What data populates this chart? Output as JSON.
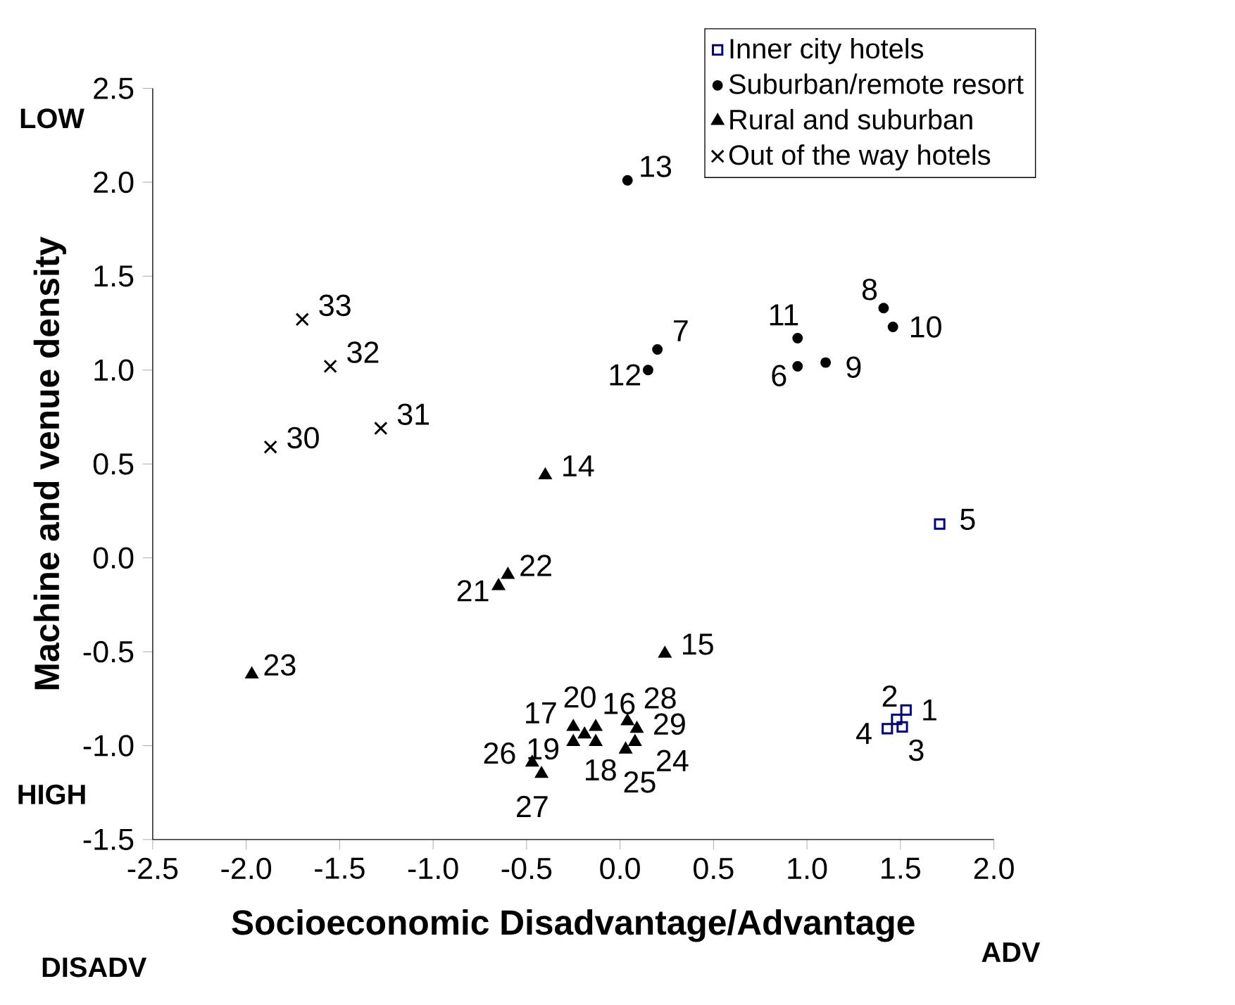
{
  "chart_data": {
    "type": "scatter",
    "xlabel": "Socioeconomic Disadvantage/Advantage",
    "ylabel": "Machine and venue density",
    "xlim": [
      -2.5,
      2.0
    ],
    "ylim": [
      -1.5,
      2.5
    ],
    "xticks": [
      {
        "value": -2.5,
        "label": "-2.5"
      },
      {
        "value": -2.0,
        "label": "-2.0"
      },
      {
        "value": -1.5,
        "label": "-1.5"
      },
      {
        "value": -1.0,
        "label": "-1.0"
      },
      {
        "value": -0.5,
        "label": "-0.5"
      },
      {
        "value": 0.0,
        "label": "0.0"
      },
      {
        "value": 0.5,
        "label": "0.5"
      },
      {
        "value": 1.0,
        "label": "1.0"
      },
      {
        "value": 1.5,
        "label": "1.5"
      },
      {
        "value": 2.0,
        "label": "2.0"
      }
    ],
    "yticks": [
      {
        "value": -1.5,
        "label": "-1.5"
      },
      {
        "value": -1.0,
        "label": "-1.0"
      },
      {
        "value": -0.5,
        "label": "-0.5"
      },
      {
        "value": 0.0,
        "label": "0.0"
      },
      {
        "value": 0.5,
        "label": "0.5"
      },
      {
        "value": 1.0,
        "label": "1.0"
      },
      {
        "value": 1.5,
        "label": "1.5"
      },
      {
        "value": 2.0,
        "label": "2.0"
      },
      {
        "value": 2.5,
        "label": "2.5"
      }
    ],
    "grid": false,
    "legend": "top right",
    "series": [
      {
        "name": "Inner city hotels",
        "color": "#000080",
        "marker": "square",
        "x": [
          1.53,
          1.48,
          1.51,
          1.43,
          1.71
        ],
        "values": [
          -0.81,
          -0.86,
          -0.9,
          -0.91,
          0.18
        ]
      },
      {
        "name": "Suburban/remote resort",
        "color": "#000000",
        "marker": "circle",
        "x": [
          0.95,
          0.2,
          1.41,
          1.1,
          1.46,
          0.95,
          0.15,
          0.04
        ],
        "values": [
          1.02,
          1.11,
          1.33,
          1.04,
          1.23,
          1.17,
          1.0,
          2.01
        ]
      },
      {
        "name": "Rural and suburban",
        "color": "#000000",
        "marker": "triangle",
        "x": [
          -0.4,
          0.24,
          -0.13,
          -0.25,
          -0.13,
          -0.25,
          -0.19,
          -0.65,
          -0.6,
          -1.97,
          0.08,
          0.03,
          -0.47,
          -0.42,
          0.04,
          0.09
        ],
        "values": [
          0.44,
          -0.51,
          -0.9,
          -0.9,
          -0.98,
          -0.98,
          -0.94,
          -0.15,
          -0.09,
          -0.62,
          -0.98,
          -1.02,
          -1.09,
          -1.15,
          -0.87,
          -0.91
        ]
      },
      {
        "name": "Out of the way hotels",
        "color": "#000000",
        "marker": "cross",
        "x": [
          -1.87,
          -1.28,
          -1.55,
          -1.7
        ],
        "values": [
          0.59,
          0.69,
          1.02,
          1.27
        ]
      }
    ],
    "annotations": [
      {
        "text": "1",
        "x": 1.53,
        "y": -0.81
      },
      {
        "text": "2",
        "x": 1.48,
        "y": -0.86
      },
      {
        "text": "3",
        "x": 1.51,
        "y": -0.9
      },
      {
        "text": "4",
        "x": 1.43,
        "y": -0.91
      },
      {
        "text": "5",
        "x": 1.71,
        "y": 0.18
      },
      {
        "text": "6",
        "x": 0.95,
        "y": 1.02
      },
      {
        "text": "7",
        "x": 0.2,
        "y": 1.11
      },
      {
        "text": "8",
        "x": 1.41,
        "y": 1.33
      },
      {
        "text": "9",
        "x": 1.1,
        "y": 1.04
      },
      {
        "text": "10",
        "x": 1.46,
        "y": 1.23
      },
      {
        "text": "11",
        "x": 0.95,
        "y": 1.17
      },
      {
        "text": "12",
        "x": 0.15,
        "y": 1.0
      },
      {
        "text": "13",
        "x": 0.04,
        "y": 2.01
      },
      {
        "text": "14",
        "x": -0.4,
        "y": 0.44
      },
      {
        "text": "15",
        "x": 0.24,
        "y": -0.51
      },
      {
        "text": "16",
        "x": -0.13,
        "y": -0.9
      },
      {
        "text": "17",
        "x": -0.25,
        "y": -0.9
      },
      {
        "text": "18",
        "x": -0.13,
        "y": -0.98
      },
      {
        "text": "19",
        "x": -0.25,
        "y": -0.98
      },
      {
        "text": "20",
        "x": -0.19,
        "y": -0.94
      },
      {
        "text": "21",
        "x": -0.65,
        "y": -0.15
      },
      {
        "text": "22",
        "x": -0.6,
        "y": -0.09
      },
      {
        "text": "23",
        "x": -1.97,
        "y": -0.62
      },
      {
        "text": "24",
        "x": 0.08,
        "y": -0.98
      },
      {
        "text": "25",
        "x": 0.03,
        "y": -1.02
      },
      {
        "text": "26",
        "x": -0.47,
        "y": -1.09
      },
      {
        "text": "27",
        "x": -0.42,
        "y": -1.15
      },
      {
        "text": "28",
        "x": 0.04,
        "y": -0.87
      },
      {
        "text": "29",
        "x": 0.09,
        "y": -0.91
      },
      {
        "text": "30",
        "x": -1.87,
        "y": 0.59
      },
      {
        "text": "31",
        "x": -1.28,
        "y": 0.69
      },
      {
        "text": "32",
        "x": -1.55,
        "y": 1.02
      },
      {
        "text": "33",
        "x": -1.7,
        "y": 1.27
      },
      "LOW",
      "HIGH",
      "DISADV",
      "ADV"
    ]
  }
}
